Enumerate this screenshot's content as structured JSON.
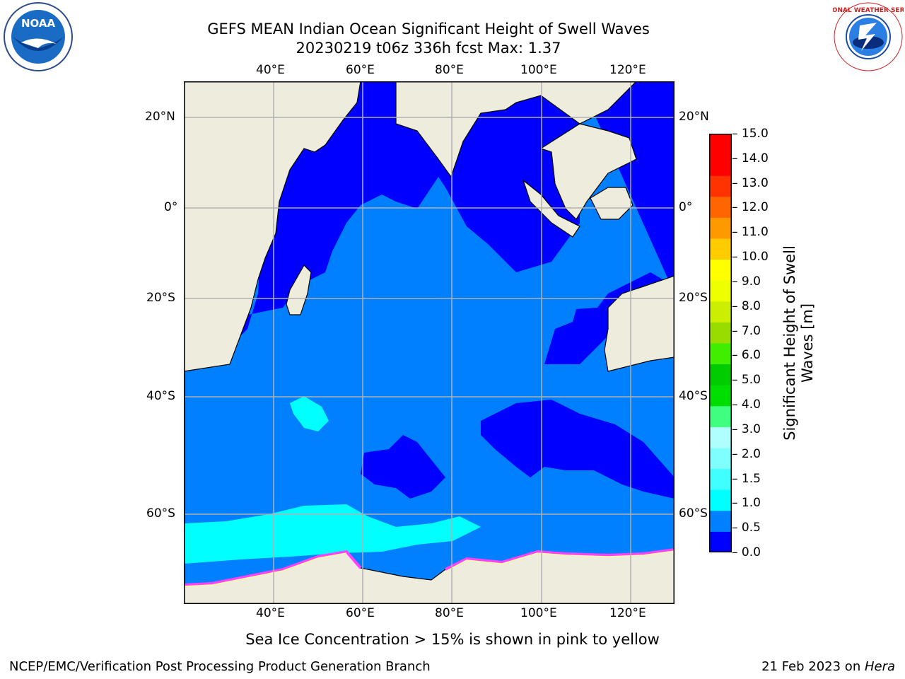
{
  "title": {
    "line1": "GEFS MEAN Indian Ocean Significant Height of Swell Waves",
    "line2": "20230219 t06z 336h fcst   Max: 1.37"
  },
  "map": {
    "lon_ticks": [
      "40°E",
      "60°E",
      "80°E",
      "100°E",
      "120°E"
    ],
    "lat_ticks": [
      "20°N",
      "0°",
      "20°S",
      "40°S",
      "60°S"
    ],
    "colors": {
      "land": "#eeecdc",
      "ocean_low": "#0000ff",
      "ocean_mid": "#0080ff",
      "ocean_cyan": "#00ffff",
      "ocean_pale": "#80ffff",
      "ice": "#ff40ff",
      "grid": "#b0b0b0"
    }
  },
  "colorbar": {
    "label_line1": "Significant Height of Swell",
    "label_line2": "Waves [m]",
    "ticks": [
      "15.0",
      "14.0",
      "13.0",
      "12.0",
      "11.0",
      "10.0",
      "9.0",
      "8.0",
      "7.0",
      "6.0",
      "5.0",
      "4.0",
      "3.0",
      "2.0",
      "1.5",
      "1.0",
      "0.5",
      "0.0"
    ],
    "colors_bottom_to_top": [
      "#0000ff",
      "#0080ff",
      "#00ffff",
      "#40ffff",
      "#80ffff",
      "#b0ffff",
      "#40ff80",
      "#00dd00",
      "#00cc00",
      "#40ee00",
      "#99dd00",
      "#ccee00",
      "#eeff00",
      "#ffff00",
      "#ffcc00",
      "#ff9900",
      "#ff6600",
      "#ff3300",
      "#ff0000",
      "#ff0000"
    ]
  },
  "logos": {
    "noaa": "NOAA",
    "nws_text": "NATIONAL WEATHER SERVICE"
  },
  "note": "Sea Ice Concentration > 15% is shown in pink to yellow",
  "footer": {
    "left": "NCEP/EMC/Verification Post Processing Product Generation Branch",
    "date": "21 Feb 2023 on ",
    "machine": "Hera"
  }
}
